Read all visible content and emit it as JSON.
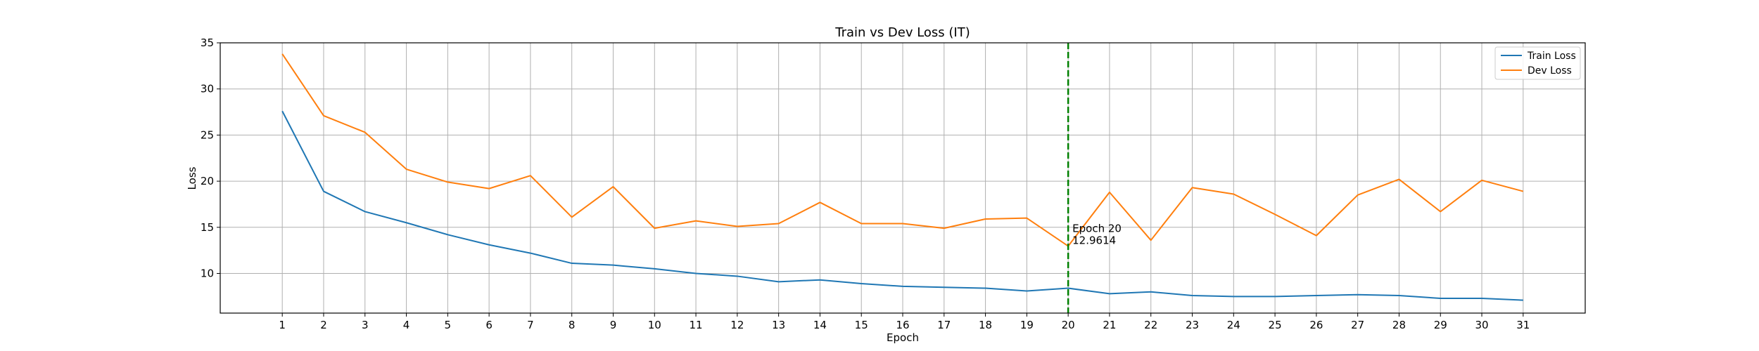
{
  "chart_data": {
    "type": "line",
    "title": "Train vs Dev Loss (IT)",
    "xlabel": "Epoch",
    "ylabel": "Loss",
    "x": [
      1,
      2,
      3,
      4,
      5,
      6,
      7,
      8,
      9,
      10,
      11,
      12,
      13,
      14,
      15,
      16,
      17,
      18,
      19,
      20,
      21,
      22,
      23,
      24,
      25,
      26,
      27,
      28,
      29,
      30,
      31
    ],
    "xlim": [
      -0.5,
      32.5
    ],
    "ylim": [
      5.7,
      35
    ],
    "yticks": [
      10,
      15,
      20,
      25,
      30,
      35
    ],
    "grid": true,
    "legend_position": "top-right",
    "series": [
      {
        "name": "Train Loss",
        "color": "#1f77b4",
        "values": [
          27.6,
          18.9,
          16.7,
          15.5,
          14.2,
          13.1,
          12.2,
          11.1,
          10.9,
          10.5,
          10.0,
          9.7,
          9.1,
          9.3,
          8.9,
          8.6,
          8.5,
          8.4,
          8.1,
          8.4,
          7.8,
          8.0,
          7.6,
          7.5,
          7.5,
          7.6,
          7.7,
          7.6,
          7.3,
          7.3,
          7.1
        ]
      },
      {
        "name": "Dev Loss",
        "color": "#ff7f0e",
        "values": [
          33.8,
          27.1,
          25.3,
          21.3,
          19.9,
          19.2,
          20.6,
          16.1,
          19.4,
          14.9,
          15.7,
          15.1,
          15.4,
          17.7,
          15.4,
          15.4,
          14.9,
          15.9,
          16.0,
          12.9614,
          18.8,
          13.6,
          19.3,
          18.6,
          16.4,
          14.1,
          18.5,
          20.2,
          16.7,
          20.1,
          18.9
        ]
      }
    ],
    "best_marker": {
      "x": 20,
      "color": "#008000",
      "label_line1": "Epoch 20",
      "label_line2": "12.9614"
    }
  }
}
